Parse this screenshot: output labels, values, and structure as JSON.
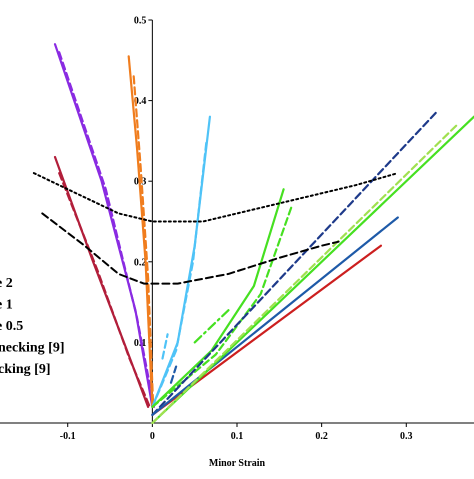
{
  "chart_data": {
    "type": "line",
    "xlabel": "Minor Strain",
    "ylabel": "",
    "xlim": [
      -0.18,
      0.38
    ],
    "ylim": [
      0,
      0.5
    ],
    "grid": false,
    "legend_position": "left (partially cropped)",
    "x_ticks": [
      "-0.1",
      "0",
      "0.1",
      "0.2",
      "0.3"
    ],
    "y_ticks": [
      "0.1",
      "0.2",
      "0.3",
      "0.4",
      "0.5"
    ],
    "legend_entries": [
      "e 2",
      "e 1",
      "e 0.5",
      "necking [9]",
      "cking [9]"
    ],
    "series": [
      {
        "color": "#8A2BE2",
        "style": "solid",
        "x": [
          -0.115,
          -0.06,
          -0.02,
          0.0
        ],
        "y": [
          0.47,
          0.3,
          0.14,
          0.02
        ]
      },
      {
        "color": "#8A2BE2",
        "style": "dashed",
        "x": [
          -0.11,
          -0.055,
          -0.018,
          0.002
        ],
        "y": [
          0.46,
          0.29,
          0.13,
          0.02
        ]
      },
      {
        "color": "#F07D1E",
        "style": "solid",
        "x": [
          -0.028,
          -0.018,
          -0.008,
          0.0
        ],
        "y": [
          0.455,
          0.34,
          0.2,
          0.02
        ]
      },
      {
        "color": "#F07D1E",
        "style": "dashed",
        "x": [
          -0.022,
          -0.014,
          -0.005,
          0.001
        ],
        "y": [
          0.43,
          0.32,
          0.18,
          0.02
        ]
      },
      {
        "color": "#B21E3A",
        "style": "solid",
        "x": [
          -0.115,
          -0.07,
          -0.03,
          -0.005
        ],
        "y": [
          0.33,
          0.2,
          0.09,
          0.02
        ]
      },
      {
        "color": "#B21E3A",
        "style": "dashed",
        "x": [
          -0.11,
          -0.065,
          -0.027,
          -0.003
        ],
        "y": [
          0.31,
          0.19,
          0.08,
          0.02
        ]
      },
      {
        "color": "#4FC3F7",
        "style": "solid",
        "x": [
          0.0,
          0.03,
          0.05,
          0.068
        ],
        "y": [
          0.02,
          0.1,
          0.22,
          0.38
        ]
      },
      {
        "color": "#4FC3F7",
        "style": "dashed",
        "x": [
          0.0,
          0.028,
          0.048,
          0.064
        ],
        "y": [
          0.02,
          0.09,
          0.2,
          0.35
        ]
      },
      {
        "color": "#46E021",
        "style": "solid",
        "x": [
          0.0,
          0.07,
          0.12,
          0.155
        ],
        "y": [
          0.02,
          0.09,
          0.17,
          0.29
        ]
      },
      {
        "color": "#46E021",
        "style": "dashed",
        "x": [
          0.0,
          0.075,
          0.128,
          0.165
        ],
        "y": [
          0.02,
          0.085,
          0.16,
          0.27
        ]
      },
      {
        "color": "#46E021",
        "style": "dashdot",
        "x": [
          0.05,
          0.09
        ],
        "y": [
          0.1,
          0.14
        ]
      },
      {
        "color": "#CC1F1F",
        "style": "solid",
        "x": [
          0.0,
          0.27
        ],
        "y": [
          0.01,
          0.22
        ]
      },
      {
        "color": "#1E3A8A",
        "style": "dashed",
        "x": [
          0.0,
          0.335
        ],
        "y": [
          0.01,
          0.385
        ]
      },
      {
        "color": "#1E5AA8",
        "style": "solid",
        "x": [
          0.0,
          0.29
        ],
        "y": [
          0.01,
          0.255
        ]
      },
      {
        "color": "#46E021",
        "style": "solid",
        "x": [
          0.0,
          0.38
        ],
        "y": [
          0.0,
          0.38
        ]
      },
      {
        "color": "#A0E050",
        "style": "dashed",
        "x": [
          0.0,
          0.36
        ],
        "y": [
          0.0,
          0.37
        ]
      },
      {
        "color": "#000000",
        "style": "dotted",
        "x": [
          -0.14,
          -0.09,
          -0.04,
          0.0,
          0.06,
          0.12,
          0.18,
          0.24,
          0.29
        ],
        "y": [
          0.31,
          0.285,
          0.26,
          0.25,
          0.25,
          0.265,
          0.28,
          0.295,
          0.31
        ]
      },
      {
        "color": "#000000",
        "style": "dashed",
        "x": [
          -0.13,
          -0.08,
          -0.04,
          -0.01,
          0.03,
          0.09,
          0.15,
          0.2,
          0.22
        ],
        "y": [
          0.26,
          0.22,
          0.185,
          0.173,
          0.173,
          0.185,
          0.205,
          0.22,
          0.225
        ]
      },
      {
        "color": "#4FC3F7",
        "style": "dashed",
        "x": [
          0.012,
          0.018
        ],
        "y": [
          0.08,
          0.11
        ]
      },
      {
        "color": "#1E5AA8",
        "style": "dashed",
        "x": [
          0.022,
          0.028
        ],
        "y": [
          0.05,
          0.07
        ]
      }
    ]
  }
}
